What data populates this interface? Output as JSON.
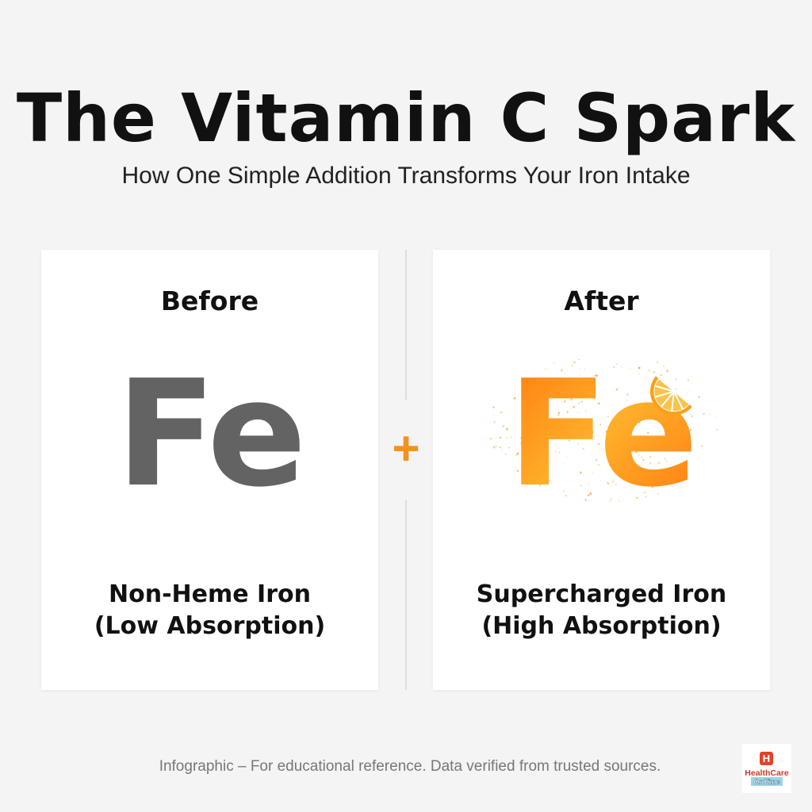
{
  "header": {
    "title": "The Vitamin C Spark",
    "subtitle": "How One Simple Addition Transforms Your Iron Intake"
  },
  "before": {
    "heading": "Before",
    "symbol": "Fe",
    "label_line1": "Non-Heme Iron",
    "label_line2": "(Low Absorption)",
    "color": "#636363"
  },
  "after": {
    "heading": "After",
    "symbol": "Fe",
    "label_line1": "Supercharged Iron",
    "label_line2": "(High Absorption)",
    "color": "#ff8a15",
    "icon": "orange-slice-icon"
  },
  "connector": {
    "symbol": "+",
    "color": "#f5921e"
  },
  "footer": {
    "text": "Infographic – For educational reference. Data verified from trusted sources."
  },
  "logo": {
    "letter": "H",
    "line1": "HealthCare",
    "line2": "OnTime"
  }
}
